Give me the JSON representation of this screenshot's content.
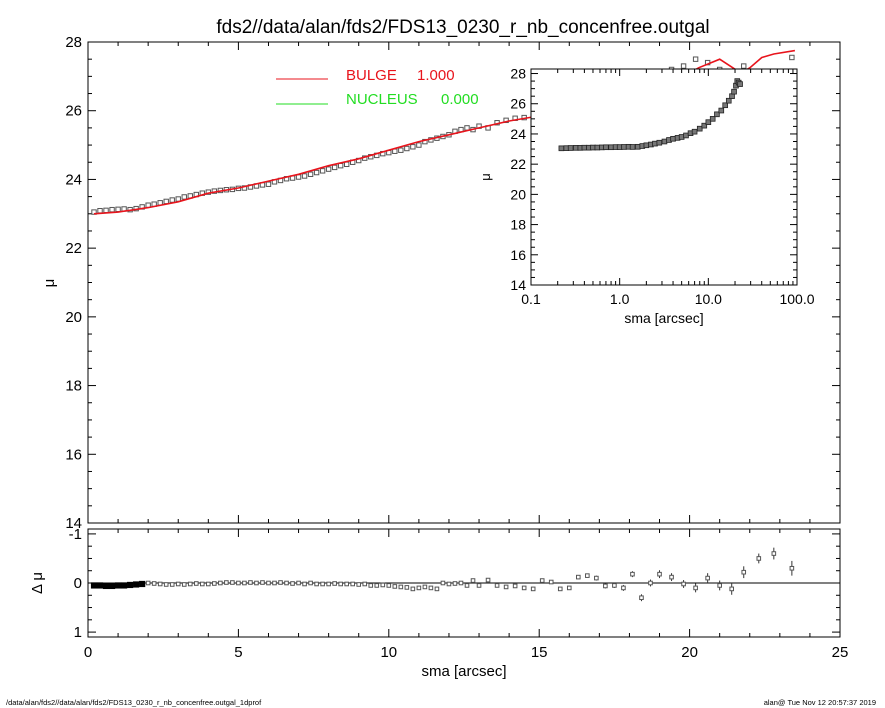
{
  "page": {
    "title": "fds2//data/alan/fds2/FDS13_0230_r_nb_concenfree.outgal",
    "footer_left": "/data/alan/fds2//data/alan/fds2/FDS13_0230_r_nb_concenfree.outgal_1dprof",
    "footer_right": "alan@  Tue Nov 12 20:57:37 2019"
  },
  "colors": {
    "bulge": "#e8141c",
    "nucleus": "#22dd22",
    "data": "#555555",
    "axis": "#000000"
  },
  "legend": {
    "items": [
      {
        "label": "BULGE",
        "value": "1.000",
        "color_key": "bulge"
      },
      {
        "label": "NUCLEUS",
        "value": "0.000",
        "color_key": "nucleus"
      }
    ]
  },
  "chart_data": [
    {
      "id": "main",
      "type": "scatter",
      "xlabel": "sma [arcsec]",
      "ylabel": "μ",
      "xlim": [
        0,
        25
      ],
      "ylim": [
        28,
        14
      ],
      "xticks": [
        0,
        5,
        10,
        15,
        20,
        25
      ],
      "yticks": [
        14,
        16,
        18,
        20,
        22,
        24,
        26,
        28
      ],
      "data_points": {
        "x": [
          0.2,
          0.4,
          0.6,
          0.8,
          1.0,
          1.2,
          1.4,
          1.6,
          1.8,
          2.0,
          2.2,
          2.4,
          2.6,
          2.8,
          3.0,
          3.2,
          3.4,
          3.6,
          3.8,
          4.0,
          4.2,
          4.4,
          4.6,
          4.8,
          5.0,
          5.2,
          5.4,
          5.6,
          5.8,
          6.0,
          6.2,
          6.4,
          6.6,
          6.8,
          7.0,
          7.2,
          7.4,
          7.6,
          7.8,
          8.0,
          8.2,
          8.4,
          8.6,
          8.8,
          9.0,
          9.2,
          9.4,
          9.6,
          9.8,
          10.0,
          10.2,
          10.4,
          10.6,
          10.8,
          11.0,
          11.2,
          11.4,
          11.6,
          11.8,
          12.0,
          12.2,
          12.4,
          12.6,
          12.8,
          13.0,
          13.3,
          13.6,
          13.9,
          14.2,
          14.5,
          14.8,
          15.1,
          15.4,
          15.7,
          16.0,
          16.3,
          16.6,
          16.9,
          17.2,
          17.5,
          17.8,
          18.1,
          18.4,
          18.7,
          19.0,
          19.4,
          19.8,
          20.2,
          20.6,
          21.0,
          21.4,
          21.8,
          22.3,
          22.8,
          23.4
        ],
        "y": [
          23.05,
          23.09,
          23.1,
          23.12,
          23.13,
          23.14,
          23.12,
          23.15,
          23.2,
          23.25,
          23.28,
          23.32,
          23.36,
          23.4,
          23.43,
          23.49,
          23.52,
          23.56,
          23.6,
          23.63,
          23.66,
          23.68,
          23.7,
          23.71,
          23.74,
          23.75,
          23.78,
          23.81,
          23.84,
          23.86,
          23.93,
          23.97,
          24.02,
          24.04,
          24.07,
          24.1,
          24.15,
          24.2,
          24.25,
          24.3,
          24.35,
          24.4,
          24.44,
          24.5,
          24.55,
          24.62,
          24.66,
          24.7,
          24.75,
          24.78,
          24.82,
          24.85,
          24.9,
          24.95,
          25.0,
          25.1,
          25.15,
          25.2,
          25.25,
          25.3,
          25.4,
          25.45,
          25.5,
          25.45,
          25.55,
          25.5,
          25.65,
          25.72,
          25.78,
          25.8,
          25.86,
          25.92,
          25.95,
          26.0,
          26.05,
          26.2,
          26.22,
          26.28,
          26.4,
          26.42,
          26.45,
          26.5,
          26.52,
          26.55,
          26.8,
          27.2,
          27.3,
          27.5,
          27.4,
          27.2,
          27.05,
          27.3,
          27.0,
          27.15,
          27.55
        ]
      },
      "model_bulge": {
        "x": [
          0.2,
          1.0,
          2.0,
          3.0,
          4.0,
          5.0,
          6.0,
          7.0,
          8.0,
          9.0,
          10.0,
          11.0,
          12.0,
          13.0,
          14.0,
          15.0,
          16.0,
          16.8,
          17.5,
          17.9,
          18.3,
          18.7,
          19.3,
          19.8,
          20.3,
          21.0,
          21.7,
          22.0,
          22.4,
          22.8,
          23.5
        ],
        "y": [
          23.0,
          23.05,
          23.18,
          23.35,
          23.6,
          23.75,
          23.95,
          24.15,
          24.4,
          24.6,
          24.85,
          25.1,
          25.3,
          25.5,
          25.7,
          25.85,
          26.05,
          26.25,
          26.2,
          26.35,
          26.55,
          26.5,
          26.85,
          27.0,
          27.25,
          27.5,
          27.1,
          27.25,
          27.55,
          27.65,
          27.75
        ]
      }
    },
    {
      "id": "residual",
      "type": "scatter",
      "xlabel": "sma [arcsec]",
      "ylabel": "Δ μ",
      "xlim": [
        0,
        25
      ],
      "ylim": [
        -1.1,
        1.1
      ],
      "yticks": [
        1,
        0,
        -1
      ],
      "reference_line": 0,
      "data_points": {
        "x": [
          0.2,
          0.4,
          0.6,
          0.8,
          1.0,
          1.2,
          1.4,
          1.6,
          1.8,
          2.0,
          2.2,
          2.4,
          2.6,
          2.8,
          3.0,
          3.2,
          3.4,
          3.6,
          3.8,
          4.0,
          4.2,
          4.4,
          4.6,
          4.8,
          5.0,
          5.2,
          5.4,
          5.6,
          5.8,
          6.0,
          6.2,
          6.4,
          6.6,
          6.8,
          7.0,
          7.2,
          7.4,
          7.6,
          7.8,
          8.0,
          8.2,
          8.4,
          8.6,
          8.8,
          9.0,
          9.2,
          9.4,
          9.6,
          9.8,
          10.0,
          10.2,
          10.4,
          10.6,
          10.8,
          11.0,
          11.2,
          11.4,
          11.6,
          11.8,
          12.0,
          12.2,
          12.4,
          12.6,
          12.8,
          13.0,
          13.3,
          13.6,
          13.9,
          14.2,
          14.5,
          14.8,
          15.1,
          15.4,
          15.7,
          16.0,
          16.3,
          16.6,
          16.9,
          17.2,
          17.5,
          17.8,
          18.1,
          18.4,
          18.7,
          19.0,
          19.4,
          19.8,
          20.2,
          20.6,
          21.0,
          21.4,
          21.8,
          22.3,
          22.8,
          23.4
        ],
        "y": [
          0.05,
          0.05,
          0.06,
          0.06,
          0.05,
          0.05,
          0.04,
          0.03,
          0.02,
          0.0,
          0.01,
          0.02,
          0.03,
          0.03,
          0.02,
          0.03,
          0.02,
          0.01,
          0.02,
          0.02,
          0.01,
          0.0,
          -0.01,
          -0.01,
          0.0,
          0.0,
          -0.01,
          0.0,
          -0.01,
          0.0,
          0.0,
          -0.01,
          0.0,
          0.01,
          0.0,
          0.02,
          0.0,
          0.02,
          0.02,
          0.02,
          0.01,
          0.02,
          0.02,
          0.02,
          0.03,
          0.02,
          0.05,
          0.05,
          0.04,
          0.05,
          0.07,
          0.08,
          0.09,
          0.12,
          0.1,
          0.08,
          0.1,
          0.12,
          0.0,
          0.02,
          0.01,
          0.0,
          0.05,
          -0.05,
          0.05,
          -0.06,
          0.05,
          0.08,
          0.06,
          0.1,
          0.12,
          -0.05,
          -0.02,
          0.12,
          0.1,
          -0.12,
          -0.15,
          -0.1,
          0.06,
          0.05,
          0.1,
          -0.18,
          0.3,
          0.0,
          -0.18,
          -0.12,
          0.02,
          0.1,
          -0.1,
          0.05,
          0.12,
          -0.22,
          -0.5,
          -0.6,
          -0.3
        ],
        "errors": [
          0.01,
          0.01,
          0.01,
          0.01,
          0.01,
          0.01,
          0.01,
          0.01,
          0.01,
          0.01,
          0.01,
          0.01,
          0.01,
          0.01,
          0.01,
          0.01,
          0.01,
          0.01,
          0.01,
          0.01,
          0.01,
          0.01,
          0.01,
          0.01,
          0.01,
          0.01,
          0.01,
          0.01,
          0.01,
          0.01,
          0.01,
          0.01,
          0.01,
          0.01,
          0.01,
          0.01,
          0.01,
          0.01,
          0.01,
          0.01,
          0.01,
          0.01,
          0.01,
          0.01,
          0.01,
          0.01,
          0.01,
          0.01,
          0.01,
          0.01,
          0.01,
          0.01,
          0.01,
          0.01,
          0.01,
          0.01,
          0.01,
          0.01,
          0.01,
          0.01,
          0.02,
          0.02,
          0.02,
          0.02,
          0.02,
          0.02,
          0.02,
          0.02,
          0.02,
          0.03,
          0.03,
          0.03,
          0.03,
          0.03,
          0.04,
          0.04,
          0.04,
          0.05,
          0.05,
          0.05,
          0.06,
          0.06,
          0.07,
          0.07,
          0.08,
          0.08,
          0.08,
          0.09,
          0.1,
          0.1,
          0.12,
          0.12,
          0.1,
          0.12,
          0.15
        ]
      }
    },
    {
      "id": "inset",
      "type": "scatter",
      "xlabel": "sma [arcsec]",
      "ylabel": "μ",
      "xscale": "log",
      "xlim": [
        0.1,
        100.0
      ],
      "ylim": [
        28.3,
        14
      ],
      "xticks": [
        0.1,
        1.0,
        10.0,
        100.0
      ],
      "xtick_labels": [
        "0.1",
        "1.0",
        "10.0",
        "100.0"
      ],
      "yticks": [
        14,
        16,
        18,
        20,
        22,
        24,
        26,
        28
      ],
      "data_points": {
        "x": [
          0.22,
          0.25,
          0.28,
          0.32,
          0.36,
          0.4,
          0.45,
          0.5,
          0.56,
          0.63,
          0.7,
          0.8,
          0.9,
          1.0,
          1.12,
          1.26,
          1.4,
          1.6,
          1.8,
          2.0,
          2.25,
          2.5,
          2.8,
          3.2,
          3.6,
          4.0,
          4.5,
          5.0,
          5.6,
          6.3,
          7.0,
          8.0,
          9.0,
          10.0,
          11.2,
          12.5,
          14.0,
          15.5,
          17.0,
          18.5,
          19.5,
          20.5,
          21.2,
          22.0,
          22.8
        ],
        "y": [
          23.05,
          23.06,
          23.07,
          23.08,
          23.08,
          23.09,
          23.09,
          23.1,
          23.1,
          23.11,
          23.12,
          23.12,
          23.13,
          23.13,
          23.14,
          23.15,
          23.14,
          23.15,
          23.2,
          23.25,
          23.3,
          23.36,
          23.42,
          23.5,
          23.6,
          23.68,
          23.74,
          23.8,
          23.9,
          24.05,
          24.15,
          24.35,
          24.55,
          24.78,
          25.0,
          25.3,
          25.55,
          25.9,
          26.2,
          26.5,
          26.8,
          27.2,
          27.5,
          27.4,
          27.3
        ]
      }
    }
  ]
}
